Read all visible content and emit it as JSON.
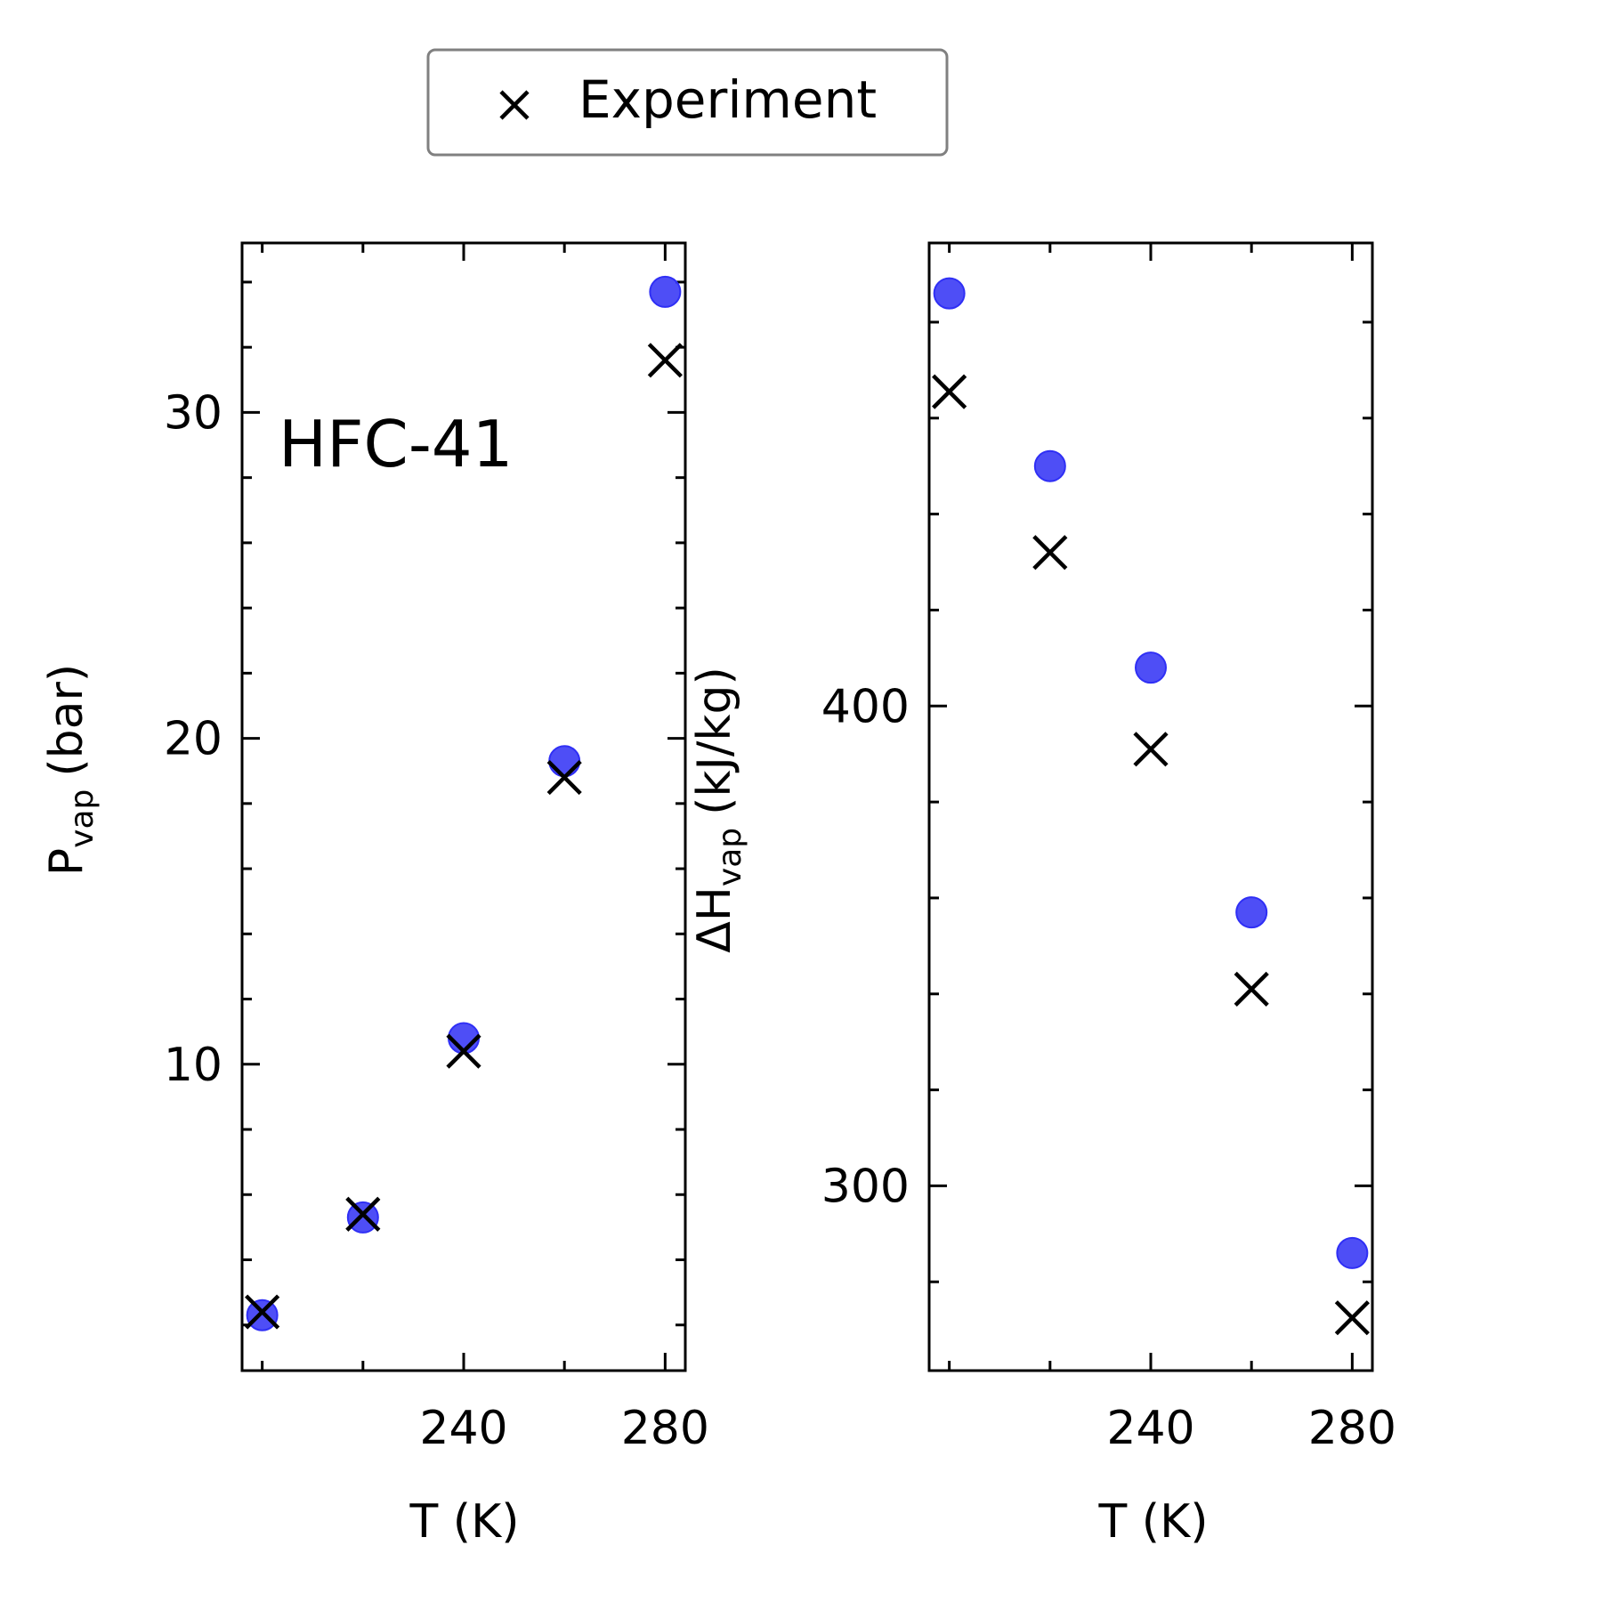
{
  "legend": {
    "entries": [
      {
        "label": "Experiment",
        "marker": "x",
        "color": "#000000"
      }
    ],
    "placement": "top-center"
  },
  "colors": {
    "simulation": "#2f2ff5",
    "experiment": "#000000"
  },
  "chart_data": [
    {
      "type": "scatter",
      "annotation": "HFC-41",
      "xlabel": "T (K)",
      "ylabel": {
        "main": "P",
        "sub": "vap",
        "unit": "(bar)"
      },
      "xlim": [
        196,
        284
      ],
      "ylim": [
        0.6,
        35.2
      ],
      "xticks": [
        240,
        280
      ],
      "yticks": [
        10,
        20,
        30
      ],
      "grid": false,
      "series": [
        {
          "marker": "circle",
          "color": "#2f2ff5",
          "x": [
            200,
            220,
            240,
            260,
            280
          ],
          "y": [
            2.3,
            5.3,
            10.8,
            19.3,
            33.7
          ]
        },
        {
          "name": "Experiment",
          "marker": "x",
          "color": "#000000",
          "x": [
            200,
            220,
            240,
            260,
            280
          ],
          "y": [
            2.4,
            5.4,
            10.4,
            18.8,
            31.6
          ]
        }
      ]
    },
    {
      "type": "scatter",
      "xlabel": "T (K)",
      "ylabel": {
        "main": "ΔH",
        "sub": "vap",
        "unit": "(kJ/kg)"
      },
      "xlim": [
        196,
        284
      ],
      "ylim": [
        261.5,
        496.5
      ],
      "xticks": [
        240,
        280
      ],
      "yticks": [
        300,
        400
      ],
      "grid": false,
      "series": [
        {
          "marker": "circle",
          "color": "#2f2ff5",
          "x": [
            200,
            220,
            240,
            260,
            280
          ],
          "y": [
            486,
            450,
            408,
            357,
            286
          ]
        },
        {
          "name": "Experiment",
          "marker": "x",
          "color": "#000000",
          "x": [
            200,
            220,
            240,
            260,
            280
          ],
          "y": [
            465.5,
            432,
            391,
            341,
            272.5
          ]
        }
      ]
    }
  ]
}
